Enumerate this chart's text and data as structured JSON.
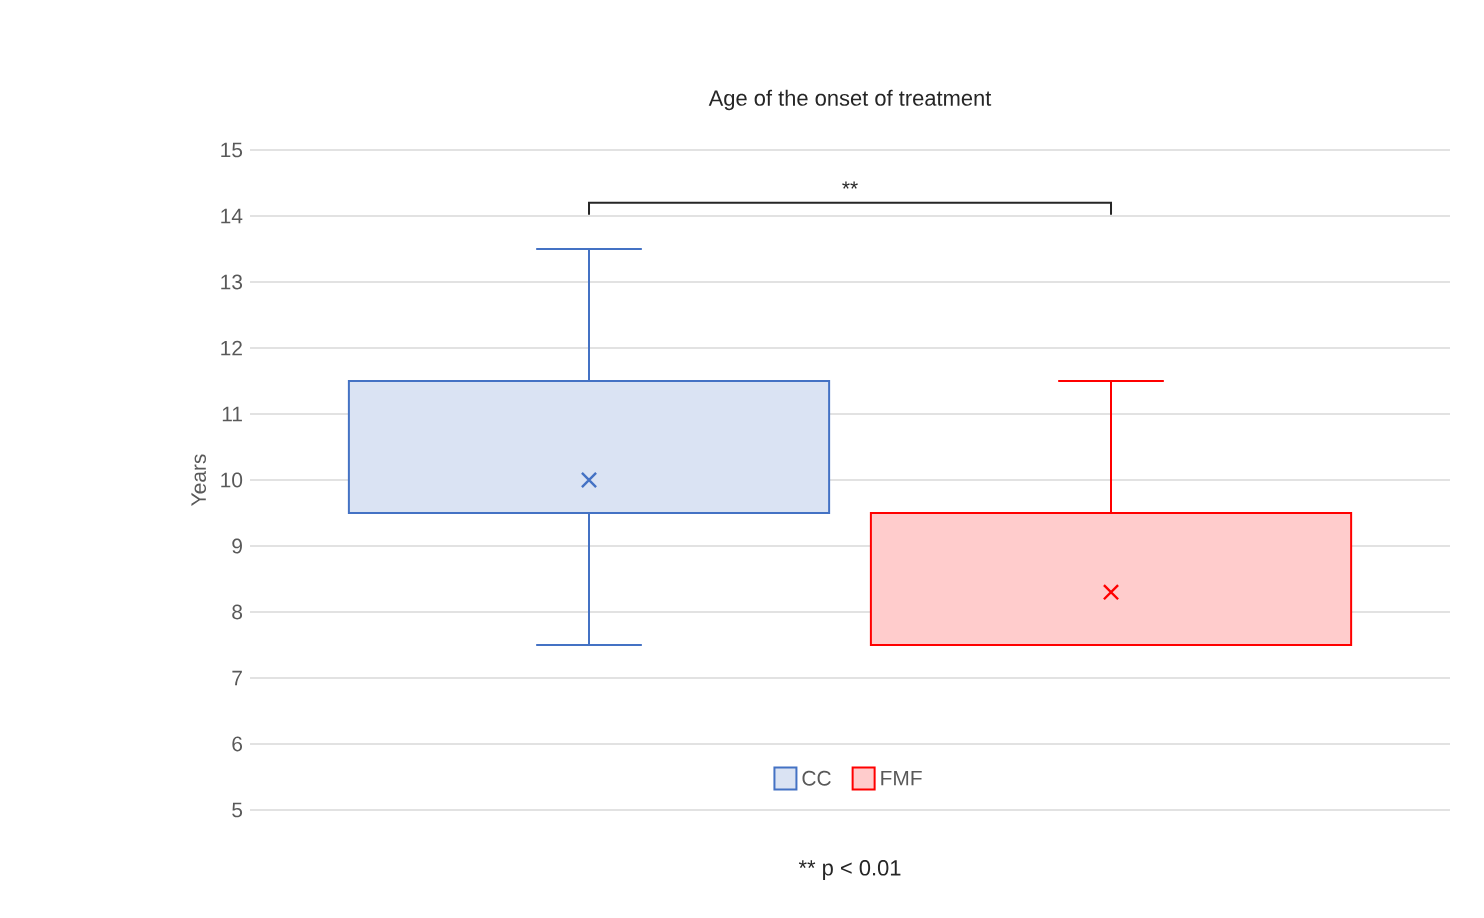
{
  "chart_data": {
    "type": "box",
    "title": "Age of the onset of treatment",
    "ylabel": "Years",
    "categories": [
      null
    ],
    "series": [
      {
        "name": "CC",
        "color": "#4472c4",
        "boxes": [
          {
            "low": 7.5,
            "q1": 9.5,
            "median": 9.5,
            "q3": 11.5,
            "high": 13.5,
            "mean": 10.0
          }
        ]
      },
      {
        "name": "FMF",
        "color": "#ff0000",
        "boxes": [
          {
            "low": 7.5,
            "q1": 7.5,
            "median": 7.5,
            "q3": 9.5,
            "high": 11.5,
            "mean": 8.3
          }
        ]
      }
    ],
    "ylim": [
      5,
      15
    ],
    "yticks": [
      5,
      6,
      7,
      8,
      9,
      10,
      11,
      12,
      13,
      14,
      15
    ],
    "grid": "y",
    "legend": "bottom",
    "tick_labels": "y",
    "marker": "cross",
    "annotations": [
      "**",
      "** p < 0.01"
    ]
  }
}
